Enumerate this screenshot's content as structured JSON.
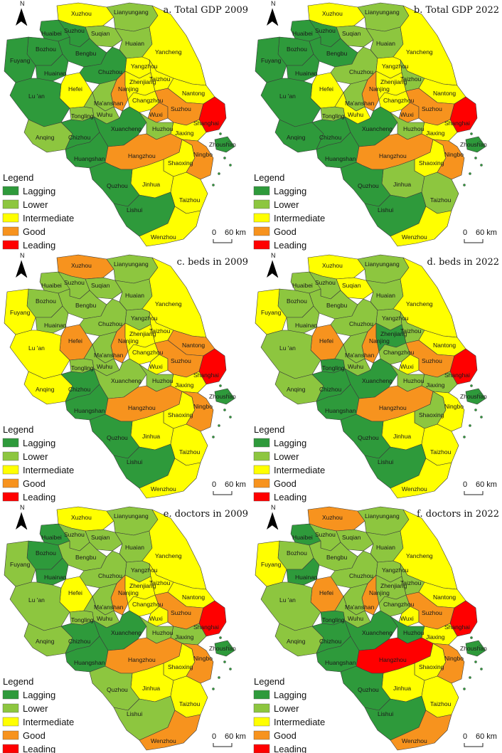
{
  "colors": {
    "Lagging": "#2e9a3b",
    "Lower": "#8dc63f",
    "Intermediate": "#ffff00",
    "Good": "#f7931e",
    "Leading": "#ff0000"
  },
  "legend": {
    "title": "Legend",
    "items": [
      "Lagging",
      "Lower",
      "Intermediate",
      "Good",
      "Leading"
    ]
  },
  "scale_bar": {
    "left": "0",
    "right": "60 km"
  },
  "north_label": "N",
  "city_names": [
    "Xuzhou",
    "Lianyungang",
    "Huaibei",
    "Suzhou",
    "Suqian",
    "Bozhou",
    "Huaian",
    "Yancheng",
    "Bengbu",
    "Fuyang",
    "Huainan",
    "Chuzhou",
    "Yangzhou",
    "Taizhou",
    "Nantong",
    "Hefei",
    "Lu 'an",
    "Nanjing",
    "Zhenjiang",
    "Ma'anshan",
    "Changzhou",
    "Wuxi",
    "Suzhou",
    "Shanghai",
    "Tongling",
    "Wuhu",
    "Anqing",
    "Chizhou",
    "Xuancheng",
    "Huzhou",
    "Jiaxing",
    "Huangshan",
    "Hangzhou",
    "Shaoxing",
    "Ningbo",
    "Zhoushan",
    "Jinhua",
    "Quzhou",
    "Taizhou",
    "Lishui",
    "Wenzhou"
  ],
  "panels": [
    {
      "title": "a. Total GDP 2009",
      "levels": {
        "Xuzhou": "Intermediate",
        "Lianyungang": "Lower",
        "Huaibei": "Lagging",
        "SuzhouN": "Lagging",
        "Suqian": "Lower",
        "Bozhou": "Lagging",
        "Huaian": "Lower",
        "Yancheng": "Intermediate",
        "Bengbu": "Lagging",
        "Fuyang": "Lagging",
        "Huainan": "Lagging",
        "Chuzhou": "Lagging",
        "Yangzhou": "Intermediate",
        "TaizhouJ": "Intermediate",
        "Nantong": "Intermediate",
        "Hefei": "Intermediate",
        "Luan": "Lagging",
        "Nanjing": "Good",
        "Zhenjiang": "Intermediate",
        "Maanshan": "Lower",
        "Changzhou": "Intermediate",
        "Wuxi": "Good",
        "SuzhouS": "Good",
        "Shanghai": "Leading",
        "Tongling": "Lower",
        "Wuhu": "Lower",
        "Anqing": "Lower",
        "Chizhou": "Lagging",
        "Xuancheng": "Lagging",
        "Huzhou": "Lower",
        "Jiaxing": "Intermediate",
        "Huangshan": "Lagging",
        "Hangzhou": "Good",
        "Shaoxing": "Intermediate",
        "Ningbo": "Good",
        "Zhoushan": "Lagging",
        "Jinhua": "Intermediate",
        "Quzhou": "Lagging",
        "TaizhouZ": "Intermediate",
        "Lishui": "Lagging",
        "Wenzhou": "Intermediate"
      }
    },
    {
      "title": "b. Total GDP 2022",
      "levels": {
        "Xuzhou": "Intermediate",
        "Lianyungang": "Lower",
        "Huaibei": "Lagging",
        "SuzhouN": "Lagging",
        "Suqian": "Lower",
        "Bozhou": "Lagging",
        "Huaian": "Lower",
        "Yancheng": "Intermediate",
        "Bengbu": "Lagging",
        "Fuyang": "Lagging",
        "Huainan": "Lagging",
        "Chuzhou": "Lower",
        "Yangzhou": "Intermediate",
        "TaizhouJ": "Lower",
        "Nantong": "Intermediate",
        "Hefei": "Intermediate",
        "Luan": "Lagging",
        "Nanjing": "Good",
        "Zhenjiang": "Intermediate",
        "Maanshan": "Lower",
        "Changzhou": "Intermediate",
        "Wuxi": "Good",
        "SuzhouS": "Good",
        "Shanghai": "Leading",
        "Tongling": "Lower",
        "Wuhu": "Intermediate",
        "Anqing": "Lagging",
        "Chizhou": "Lagging",
        "Xuancheng": "Lagging",
        "Huzhou": "Lower",
        "Jiaxing": "Intermediate",
        "Huangshan": "Lagging",
        "Hangzhou": "Good",
        "Shaoxing": "Intermediate",
        "Ningbo": "Good",
        "Zhoushan": "Lagging",
        "Jinhua": "Lower",
        "Quzhou": "Lagging",
        "TaizhouZ": "Lower",
        "Lishui": "Lagging",
        "Wenzhou": "Intermediate"
      }
    },
    {
      "title": "c. beds in 2009",
      "levels": {
        "Xuzhou": "Good",
        "Lianyungang": "Lower",
        "Huaibei": "Lower",
        "SuzhouN": "Lower",
        "Suqian": "Lower",
        "Bozhou": "Lower",
        "Huaian": "Lower",
        "Yancheng": "Intermediate",
        "Bengbu": "Lower",
        "Fuyang": "Intermediate",
        "Huainan": "Lower",
        "Chuzhou": "Lower",
        "Yangzhou": "Lower",
        "TaizhouJ": "Intermediate",
        "Nantong": "Good",
        "Hefei": "Good",
        "Luan": "Intermediate",
        "Nanjing": "Good",
        "Zhenjiang": "Intermediate",
        "Maanshan": "Lower",
        "Changzhou": "Intermediate",
        "Wuxi": "Intermediate",
        "SuzhouS": "Good",
        "Shanghai": "Leading",
        "Tongling": "Lower",
        "Wuhu": "Lower",
        "Anqing": "Intermediate",
        "Chizhou": "Lagging",
        "Xuancheng": "Lower",
        "Huzhou": "Lower",
        "Jiaxing": "Intermediate",
        "Huangshan": "Lagging",
        "Hangzhou": "Good",
        "Shaoxing": "Intermediate",
        "Ningbo": "Good",
        "Zhoushan": "Lagging",
        "Jinhua": "Intermediate",
        "Quzhou": "Lagging",
        "TaizhouZ": "Intermediate",
        "Lishui": "Lagging",
        "Wenzhou": "Intermediate"
      }
    },
    {
      "title": "d. beds in 2022",
      "levels": {
        "Xuzhou": "Intermediate",
        "Lianyungang": "Lower",
        "Huaibei": "Lower",
        "SuzhouN": "Lower",
        "Suqian": "Intermediate",
        "Bozhou": "Lower",
        "Huaian": "Lower",
        "Yancheng": "Intermediate",
        "Bengbu": "Lower",
        "Fuyang": "Intermediate",
        "Huainan": "Lower",
        "Chuzhou": "Lower",
        "Yangzhou": "Lower",
        "TaizhouJ": "Lower",
        "Nantong": "Intermediate",
        "Hefei": "Good",
        "Luan": "Lower",
        "Nanjing": "Good",
        "Zhenjiang": "Lagging",
        "Maanshan": "Lower",
        "Changzhou": "Lower",
        "Wuxi": "Intermediate",
        "SuzhouS": "Good",
        "Shanghai": "Leading",
        "Tongling": "Lagging",
        "Wuhu": "Lower",
        "Anqing": "Lower",
        "Chizhou": "Lagging",
        "Xuancheng": "Lagging",
        "Huzhou": "Lower",
        "Jiaxing": "Lower",
        "Huangshan": "Lagging",
        "Hangzhou": "Good",
        "Shaoxing": "Lower",
        "Ningbo": "Intermediate",
        "Zhoushan": "Lagging",
        "Jinhua": "Intermediate",
        "Quzhou": "Lagging",
        "TaizhouZ": "Intermediate",
        "Lishui": "Lagging",
        "Wenzhou": "Intermediate"
      }
    },
    {
      "title": "e. doctors in 2009",
      "levels": {
        "Xuzhou": "Intermediate",
        "Lianyungang": "Lower",
        "Huaibei": "Lagging",
        "SuzhouN": "Lower",
        "Suqian": "Lower",
        "Bozhou": "Lagging",
        "Huaian": "Lower",
        "Yancheng": "Intermediate",
        "Bengbu": "Lower",
        "Fuyang": "Lower",
        "Huainan": "Lagging",
        "Chuzhou": "Lower",
        "Yangzhou": "Lower",
        "TaizhouJ": "Intermediate",
        "Nantong": "Intermediate",
        "Hefei": "Intermediate",
        "Luan": "Lower",
        "Nanjing": "Good",
        "Zhenjiang": "Intermediate",
        "Maanshan": "Lower",
        "Changzhou": "Intermediate",
        "Wuxi": "Intermediate",
        "SuzhouS": "Good",
        "Shanghai": "Leading",
        "Tongling": "Lower",
        "Wuhu": "Lower",
        "Anqing": "Lower",
        "Chizhou": "Lagging",
        "Xuancheng": "Lagging",
        "Huzhou": "Lower",
        "Jiaxing": "Lower",
        "Huangshan": "Lagging",
        "Hangzhou": "Good",
        "Shaoxing": "Intermediate",
        "Ningbo": "Good",
        "Zhoushan": "Lagging",
        "Jinhua": "Intermediate",
        "Quzhou": "Lower",
        "TaizhouZ": "Intermediate",
        "Lishui": "Lower",
        "Wenzhou": "Good"
      }
    },
    {
      "title": "f. doctors in 2022",
      "levels": {
        "Xuzhou": "Good",
        "Lianyungang": "Lower",
        "Huaibei": "Lagging",
        "SuzhouN": "Lower",
        "Suqian": "Lower",
        "Bozhou": "Lower",
        "Huaian": "Lower",
        "Yancheng": "Intermediate",
        "Bengbu": "Lower",
        "Fuyang": "Intermediate",
        "Huainan": "Lagging",
        "Chuzhou": "Lower",
        "Yangzhou": "Lower",
        "TaizhouJ": "Lower",
        "Nantong": "Intermediate",
        "Hefei": "Good",
        "Luan": "Lower",
        "Nanjing": "Good",
        "Zhenjiang": "Lower",
        "Maanshan": "Lower",
        "Changzhou": "Lower",
        "Wuxi": "Intermediate",
        "SuzhouS": "Good",
        "Shanghai": "Leading",
        "Tongling": "Lagging",
        "Wuhu": "Lower",
        "Anqing": "Lower",
        "Chizhou": "Lagging",
        "Xuancheng": "Lagging",
        "Huzhou": "Lagging",
        "Jiaxing": "Intermediate",
        "Huangshan": "Lagging",
        "Hangzhou": "Leading",
        "Shaoxing": "Intermediate",
        "Ningbo": "Good",
        "Zhoushan": "Lagging",
        "Jinhua": "Intermediate",
        "Quzhou": "Lagging",
        "TaizhouZ": "Intermediate",
        "Lishui": "Lagging",
        "Wenzhou": "Good"
      }
    }
  ]
}
